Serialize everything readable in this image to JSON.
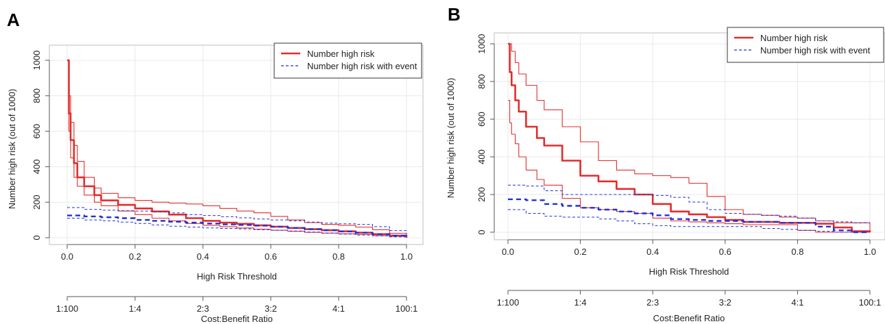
{
  "chart_data": [
    {
      "panel_label": "A",
      "type": "line",
      "xlabel": "High Risk Threshold",
      "ylabel": "Number high risk (out of 1000)",
      "xlim": [
        0,
        1
      ],
      "ylim": [
        0,
        1000
      ],
      "x_ticks": [
        "0.0",
        "0.2",
        "0.4",
        "0.6",
        "0.8",
        "1.0"
      ],
      "y_ticks": [
        "0",
        "200",
        "400",
        "600",
        "800",
        "1000"
      ],
      "second_axis_label": "Cost:Benefit Ratio",
      "second_axis_ticks": [
        "1:100",
        "1:4",
        "2:3",
        "3:2",
        "4:1",
        "100:1"
      ],
      "grid": true,
      "legend_position": "top-right",
      "legend": [
        "Number high risk",
        "Number high risk with event"
      ],
      "series": [
        {
          "name": "Number high risk",
          "color": "#e32b2b",
          "style": "solid",
          "width": 2.6,
          "x": [
            0.0,
            0.005,
            0.01,
            0.02,
            0.03,
            0.05,
            0.08,
            0.1,
            0.15,
            0.2,
            0.25,
            0.3,
            0.35,
            0.4,
            0.45,
            0.5,
            0.55,
            0.6,
            0.65,
            0.7,
            0.75,
            0.8,
            0.85,
            0.9,
            0.95,
            1.0
          ],
          "y": [
            1000,
            700,
            550,
            420,
            340,
            290,
            240,
            210,
            185,
            165,
            148,
            130,
            110,
            95,
            85,
            78,
            70,
            62,
            55,
            48,
            42,
            36,
            28,
            20,
            12,
            0
          ]
        },
        {
          "name": "",
          "color": "#e32b2b",
          "style": "solid",
          "width": 1.1,
          "x": [
            0.0,
            0.005,
            0.01,
            0.02,
            0.03,
            0.05,
            0.08,
            0.1,
            0.15,
            0.2,
            0.25,
            0.3,
            0.35,
            0.4,
            0.45,
            0.5,
            0.55,
            0.6,
            0.65,
            0.7,
            0.75,
            0.8,
            0.85,
            0.9,
            0.95,
            1.0
          ],
          "y": [
            1000,
            800,
            650,
            520,
            430,
            340,
            280,
            250,
            225,
            210,
            200,
            195,
            190,
            180,
            165,
            150,
            140,
            120,
            100,
            85,
            75,
            70,
            60,
            45,
            25,
            0
          ]
        },
        {
          "name": "",
          "color": "#e32b2b",
          "style": "solid",
          "width": 1.1,
          "x": [
            0.0,
            0.005,
            0.01,
            0.02,
            0.03,
            0.05,
            0.08,
            0.1,
            0.15,
            0.2,
            0.25,
            0.3,
            0.35,
            0.4,
            0.45,
            0.5,
            0.55,
            0.6,
            0.65,
            0.7,
            0.75,
            0.8,
            0.85,
            0.9,
            0.95,
            1.0
          ],
          "y": [
            1000,
            600,
            450,
            340,
            290,
            240,
            200,
            180,
            150,
            130,
            110,
            95,
            80,
            70,
            62,
            55,
            48,
            42,
            36,
            30,
            26,
            22,
            18,
            12,
            8,
            0
          ]
        },
        {
          "name": "Number high risk with event",
          "color": "#1f2fd8",
          "style": "dashed",
          "width": 2.4,
          "x": [
            0.0,
            0.05,
            0.1,
            0.15,
            0.2,
            0.25,
            0.3,
            0.35,
            0.4,
            0.45,
            0.5,
            0.55,
            0.6,
            0.65,
            0.7,
            0.75,
            0.8,
            0.85,
            0.9,
            0.95,
            1.0
          ],
          "y": [
            125,
            120,
            115,
            110,
            100,
            95,
            90,
            85,
            80,
            75,
            72,
            68,
            62,
            55,
            48,
            42,
            35,
            28,
            20,
            12,
            0
          ]
        },
        {
          "name": "",
          "color": "#1f2fd8",
          "style": "dashed",
          "width": 1.0,
          "x": [
            0.0,
            0.05,
            0.1,
            0.15,
            0.2,
            0.25,
            0.3,
            0.35,
            0.4,
            0.45,
            0.5,
            0.55,
            0.6,
            0.65,
            0.7,
            0.75,
            0.8,
            0.85,
            0.9,
            0.95,
            1.0
          ],
          "y": [
            170,
            160,
            155,
            152,
            150,
            145,
            140,
            130,
            125,
            118,
            112,
            105,
            100,
            95,
            88,
            82,
            78,
            75,
            62,
            40,
            0
          ]
        },
        {
          "name": "",
          "color": "#1f2fd8",
          "style": "dashed",
          "width": 1.0,
          "x": [
            0.0,
            0.05,
            0.1,
            0.15,
            0.2,
            0.25,
            0.3,
            0.35,
            0.4,
            0.45,
            0.5,
            0.55,
            0.6,
            0.65,
            0.7,
            0.75,
            0.8,
            0.85,
            0.9,
            0.95,
            1.0
          ],
          "y": [
            110,
            100,
            95,
            88,
            80,
            72,
            65,
            60,
            55,
            52,
            50,
            45,
            42,
            38,
            32,
            26,
            20,
            15,
            10,
            5,
            0
          ]
        }
      ]
    },
    {
      "panel_label": "B",
      "type": "line",
      "xlabel": "High Risk Threshold",
      "ylabel": "Number high risk (out of 1000)",
      "xlim": [
        0,
        1
      ],
      "ylim": [
        0,
        1000
      ],
      "x_ticks": [
        "0.0",
        "0.2",
        "0.4",
        "0.6",
        "0.8",
        "1.0"
      ],
      "y_ticks": [
        "0",
        "200",
        "400",
        "600",
        "800",
        "1000"
      ],
      "second_axis_label": "Cost:Benefit Ratio",
      "second_axis_ticks": [
        "1:100",
        "1:4",
        "2:3",
        "3:2",
        "4:1",
        "100:1"
      ],
      "grid": true,
      "legend_position": "top-right",
      "legend": [
        "Number high risk",
        "Number high risk with event"
      ],
      "series": [
        {
          "name": "Number high risk",
          "color": "#e32b2b",
          "style": "solid",
          "width": 2.6,
          "x": [
            0.0,
            0.005,
            0.01,
            0.02,
            0.03,
            0.05,
            0.08,
            0.1,
            0.15,
            0.2,
            0.25,
            0.3,
            0.35,
            0.4,
            0.45,
            0.5,
            0.55,
            0.6,
            0.65,
            0.7,
            0.75,
            0.8,
            0.85,
            0.9,
            0.95,
            1.0
          ],
          "y": [
            1000,
            850,
            780,
            700,
            640,
            560,
            500,
            460,
            380,
            300,
            270,
            230,
            200,
            150,
            110,
            95,
            80,
            65,
            55,
            55,
            50,
            50,
            45,
            25,
            5,
            0
          ]
        },
        {
          "name": "",
          "color": "#e32b2b",
          "style": "solid",
          "width": 1.1,
          "x": [
            0.0,
            0.005,
            0.01,
            0.02,
            0.03,
            0.05,
            0.08,
            0.1,
            0.15,
            0.2,
            0.25,
            0.3,
            0.35,
            0.4,
            0.45,
            0.5,
            0.55,
            0.6,
            0.65,
            0.7,
            0.75,
            0.8,
            0.85,
            0.9,
            0.95,
            1.0
          ],
          "y": [
            1000,
            1000,
            960,
            900,
            840,
            780,
            700,
            650,
            560,
            480,
            380,
            330,
            310,
            300,
            290,
            260,
            190,
            120,
            95,
            90,
            80,
            75,
            60,
            50,
            50,
            0
          ]
        },
        {
          "name": "",
          "color": "#e32b2b",
          "style": "solid",
          "width": 1.1,
          "x": [
            0.0,
            0.005,
            0.01,
            0.02,
            0.03,
            0.05,
            0.08,
            0.1,
            0.15,
            0.2,
            0.25,
            0.3,
            0.35,
            0.4,
            0.45,
            0.5,
            0.55,
            0.6,
            0.65,
            0.7,
            0.75,
            0.8,
            0.85,
            0.9,
            0.95,
            1.0
          ],
          "y": [
            700,
            580,
            520,
            470,
            400,
            330,
            280,
            250,
            180,
            130,
            120,
            110,
            100,
            75,
            60,
            55,
            50,
            45,
            40,
            40,
            40,
            10,
            0,
            0,
            0,
            0
          ]
        },
        {
          "name": "Number high risk with event",
          "color": "#1f2fd8",
          "style": "dashed",
          "width": 2.4,
          "x": [
            0.0,
            0.05,
            0.1,
            0.15,
            0.2,
            0.25,
            0.3,
            0.35,
            0.4,
            0.45,
            0.5,
            0.55,
            0.6,
            0.65,
            0.7,
            0.75,
            0.8,
            0.85,
            0.9,
            0.95,
            1.0
          ],
          "y": [
            175,
            170,
            150,
            140,
            130,
            120,
            110,
            100,
            90,
            70,
            65,
            60,
            60,
            55,
            55,
            50,
            50,
            30,
            10,
            0,
            0
          ]
        },
        {
          "name": "",
          "color": "#1f2fd8",
          "style": "dashed",
          "width": 1.0,
          "x": [
            0.0,
            0.05,
            0.1,
            0.15,
            0.2,
            0.25,
            0.3,
            0.35,
            0.4,
            0.45,
            0.5,
            0.55,
            0.6,
            0.65,
            0.7,
            0.75,
            0.8,
            0.85,
            0.9,
            0.95,
            1.0
          ],
          "y": [
            250,
            245,
            220,
            200,
            200,
            200,
            200,
            200,
            195,
            185,
            160,
            120,
            100,
            95,
            90,
            85,
            75,
            60,
            55,
            50,
            50
          ]
        },
        {
          "name": "",
          "color": "#1f2fd8",
          "style": "dashed",
          "width": 1.0,
          "x": [
            0.0,
            0.05,
            0.1,
            0.15,
            0.2,
            0.25,
            0.3,
            0.35,
            0.4,
            0.45,
            0.5,
            0.55,
            0.6,
            0.65,
            0.7,
            0.75,
            0.8,
            0.85,
            0.9,
            0.95,
            1.0
          ],
          "y": [
            120,
            100,
            85,
            80,
            80,
            70,
            60,
            45,
            35,
            30,
            30,
            30,
            30,
            30,
            20,
            15,
            10,
            5,
            0,
            0,
            0
          ]
        }
      ]
    }
  ]
}
